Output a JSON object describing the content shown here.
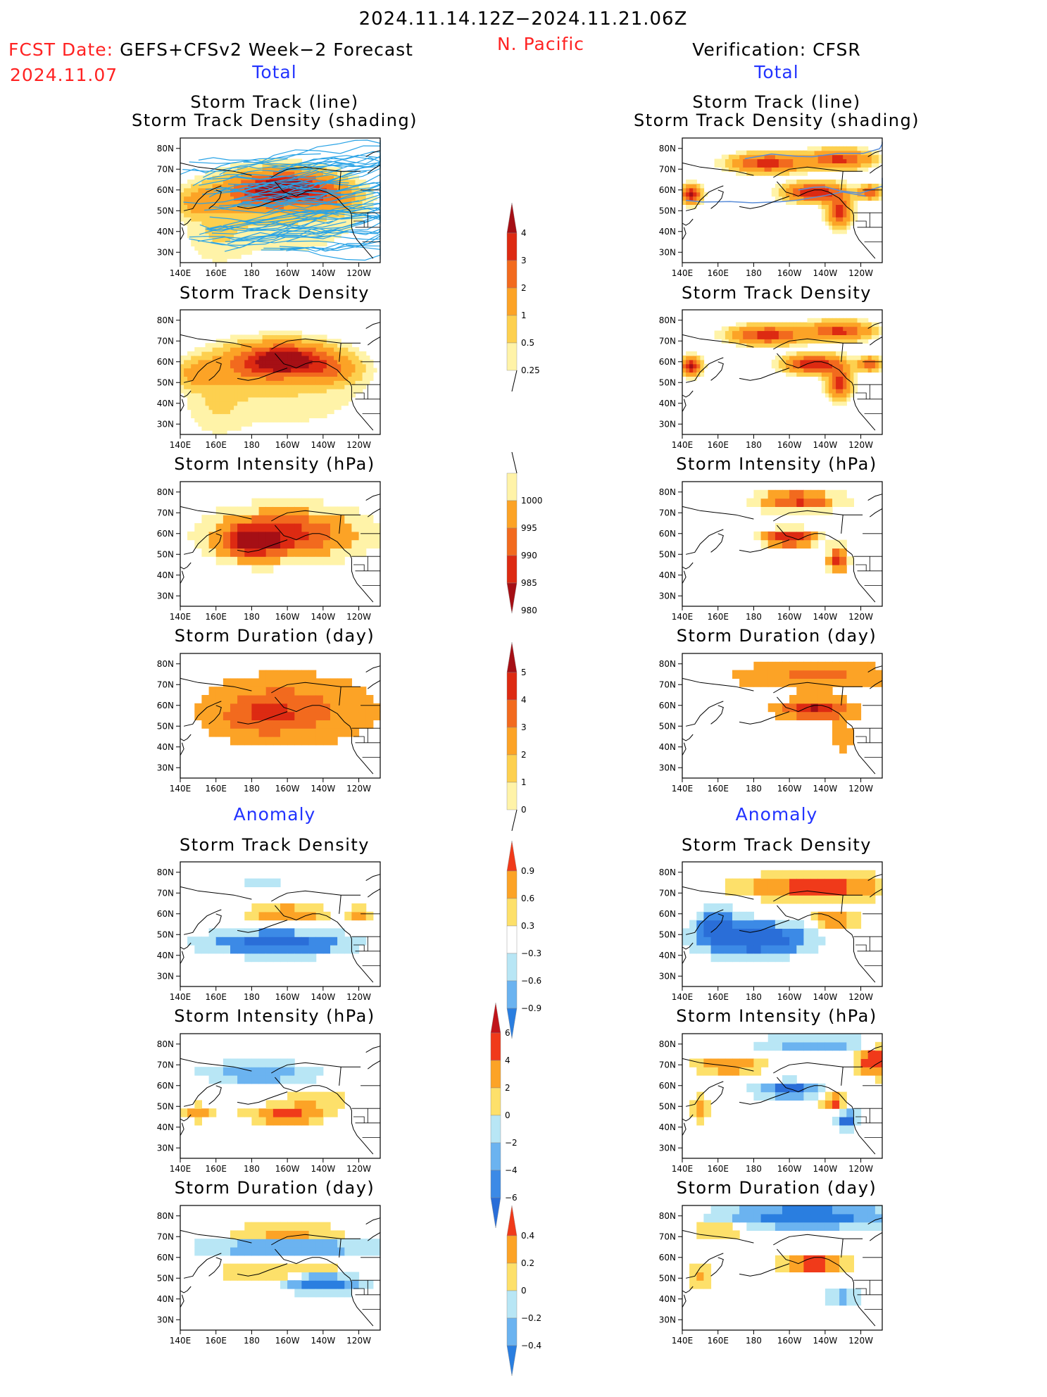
{
  "header": {
    "period": "2024.11.14.12Z−2024.11.21.06Z",
    "region": "N. Pacific",
    "fcst_label": "FCST Date:",
    "fcst_model": "GEFS+CFSv2 Week−2 Forecast",
    "fcst_date": "2024.11.07",
    "verification": "Verification: CFSR",
    "left_total": "Total",
    "right_total": "Total",
    "left_anomaly": "Anomaly",
    "right_anomaly": "Anomaly"
  },
  "axes": {
    "xticks": [
      "140E",
      "160E",
      "180",
      "160W",
      "140W",
      "120W"
    ],
    "yticks": [
      "80N",
      "70N",
      "60N",
      "50N",
      "40N",
      "30N"
    ]
  },
  "panel_titles": {
    "track_line": "Storm Track (line)",
    "track_shading": "Storm Track Density (shading)",
    "density": "Storm Track Density",
    "intensity": "Storm Intensity (hPa)",
    "duration": "Storm Duration (day)"
  },
  "colorbars": {
    "density_total": {
      "labels": [
        "4",
        "3",
        "2",
        "1",
        "0.5",
        "0.25"
      ],
      "colors": [
        "#a50f15",
        "#dd2a12",
        "#f26a1e",
        "#fca326",
        "#fdd04f",
        "#fff3a8"
      ]
    },
    "intensity_total": {
      "labels": [
        "1000",
        "995",
        "990",
        "985",
        "980"
      ],
      "colors": [
        "#fff3a8",
        "#fca326",
        "#f26a1e",
        "#dd2a12",
        "#a50f15"
      ]
    },
    "duration_total": {
      "labels": [
        "5",
        "4",
        "3",
        "2",
        "1",
        "0"
      ],
      "colors": [
        "#a50f15",
        "#dd2a12",
        "#f26a1e",
        "#fca326",
        "#fdd04f",
        "#fff3a8"
      ]
    },
    "density_anom": {
      "labels": [
        "0.9",
        "0.6",
        "0.3",
        "−0.3",
        "−0.6",
        "−0.9"
      ],
      "colors": [
        "#f03a1a",
        "#fca326",
        "#fde06a",
        "#ffffff",
        "#b8e6f5",
        "#6bb3f0",
        "#2a7ee0"
      ]
    },
    "intensity_anom": {
      "labels": [
        "6",
        "4",
        "2",
        "0",
        "−2",
        "−4",
        "−6"
      ],
      "colors": [
        "#c0141a",
        "#f03a1a",
        "#fca326",
        "#fde06a",
        "#b8e6f5",
        "#6bb3f0",
        "#3c8ae6",
        "#2a6ed8"
      ]
    },
    "duration_anom": {
      "labels": [
        "0.4",
        "0.2",
        "0",
        "−0.2",
        "−0.4"
      ],
      "colors": [
        "#f03a1a",
        "#fca326",
        "#fde06a",
        "#b8e6f5",
        "#6bb3f0",
        "#2a7ee0"
      ]
    }
  },
  "chart_data": [
    {
      "type": "heatmap",
      "title": "Storm Track (line) / Storm Track Density (shading)",
      "panel": "forecast-total-track",
      "colorbar": "density_total"
    },
    {
      "type": "heatmap",
      "title": "Storm Track Density",
      "panel": "forecast-total-density",
      "colorbar": "density_total"
    },
    {
      "type": "heatmap",
      "title": "Storm Intensity (hPa)",
      "panel": "forecast-total-intensity",
      "colorbar": "intensity_total"
    },
    {
      "type": "heatmap",
      "title": "Storm Duration (day)",
      "panel": "forecast-total-duration",
      "colorbar": "duration_total"
    },
    {
      "type": "heatmap",
      "title": "Storm Track Density",
      "panel": "forecast-anomaly-density",
      "colorbar": "density_anom"
    },
    {
      "type": "heatmap",
      "title": "Storm Intensity (hPa)",
      "panel": "forecast-anomaly-intensity",
      "colorbar": "intensity_anom"
    },
    {
      "type": "heatmap",
      "title": "Storm Duration (day)",
      "panel": "forecast-anomaly-duration",
      "colorbar": "duration_anom"
    },
    {
      "type": "heatmap",
      "title": "Storm Track (line) / Storm Track Density (shading)",
      "panel": "verification-total-track",
      "colorbar": "density_total"
    },
    {
      "type": "heatmap",
      "title": "Storm Track Density",
      "panel": "verification-total-density",
      "colorbar": "density_total"
    },
    {
      "type": "heatmap",
      "title": "Storm Intensity (hPa)",
      "panel": "verification-total-intensity",
      "colorbar": "intensity_total"
    },
    {
      "type": "heatmap",
      "title": "Storm Duration (day)",
      "panel": "verification-total-duration",
      "colorbar": "duration_total"
    },
    {
      "type": "heatmap",
      "title": "Storm Track Density",
      "panel": "verification-anomaly-density",
      "colorbar": "density_anom"
    },
    {
      "type": "heatmap",
      "title": "Storm Intensity (hPa)",
      "panel": "verification-anomaly-intensity",
      "colorbar": "intensity_anom"
    },
    {
      "type": "heatmap",
      "title": "Storm Duration (day)",
      "panel": "verification-anomaly-duration",
      "colorbar": "duration_anom"
    }
  ]
}
